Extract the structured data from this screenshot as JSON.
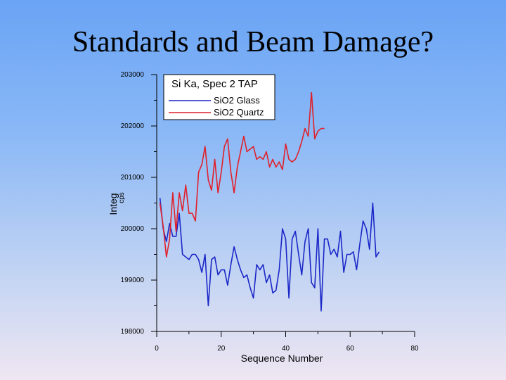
{
  "slide": {
    "title": "Standards and Beam Damage?"
  },
  "colors": {
    "glass": "#1b27c8",
    "quartz": "#e0202a"
  },
  "chart_data": {
    "type": "line",
    "title": "",
    "xlabel": "Sequence Number",
    "ylabel": "Integ",
    "ylabel_unit": "cps",
    "xlim": [
      0,
      80
    ],
    "ylim": [
      198000,
      203000
    ],
    "xticks": [
      0,
      20,
      40,
      60,
      80
    ],
    "yticks": [
      198000,
      199000,
      200000,
      201000,
      202000,
      203000
    ],
    "xtick_labels": [
      "0",
      "20",
      "40",
      "60",
      "80"
    ],
    "ytick_labels": [
      "198000",
      "199000",
      "200000",
      "201000",
      "202000",
      "203000"
    ],
    "legend": {
      "title": "Si Ka, Spec 2 TAP",
      "position": "top-left"
    },
    "series": [
      {
        "name": "SiO2 Glass",
        "color": "#1b27c8",
        "x": [
          1,
          2,
          3,
          4,
          5,
          6,
          7,
          8,
          9,
          10,
          11,
          12,
          13,
          14,
          15,
          16,
          17,
          18,
          19,
          20,
          21,
          22,
          23,
          24,
          25,
          26,
          27,
          28,
          29,
          30,
          31,
          32,
          33,
          34,
          35,
          36,
          37,
          38,
          39,
          40,
          41,
          42,
          43,
          44,
          45,
          46,
          47,
          48,
          49,
          50,
          51,
          52,
          53,
          54,
          55,
          56,
          57,
          58,
          59,
          60,
          61,
          62,
          63,
          64,
          65,
          66,
          67,
          68,
          69
        ],
        "values": [
          200600,
          200000,
          199750,
          200100,
          199850,
          199850,
          200300,
          199500,
          199450,
          199400,
          199500,
          199500,
          199400,
          199150,
          199500,
          198500,
          199400,
          199450,
          199100,
          199200,
          199200,
          198900,
          199300,
          199650,
          199400,
          199200,
          199050,
          199100,
          198850,
          198650,
          199300,
          199200,
          199300,
          198950,
          199100,
          198750,
          198800,
          199200,
          200000,
          199800,
          198650,
          199800,
          199950,
          199500,
          199100,
          199750,
          200000,
          198950,
          198850,
          200000,
          198400,
          199800,
          199800,
          199500,
          199600,
          199450,
          199950,
          199150,
          199500,
          199500,
          199550,
          199200,
          199700,
          200150,
          200000,
          199600,
          200500,
          199450,
          199550
        ]
      },
      {
        "name": "SiO2 Quartz",
        "color": "#e0202a",
        "x": [
          1,
          2,
          3,
          4,
          5,
          6,
          7,
          8,
          9,
          10,
          11,
          12,
          13,
          14,
          15,
          16,
          17,
          18,
          19,
          20,
          21,
          22,
          23,
          24,
          25,
          26,
          27,
          28,
          29,
          30,
          31,
          32,
          33,
          34,
          35,
          36,
          37,
          38,
          39,
          40,
          41,
          42,
          43,
          44,
          45,
          46,
          47,
          48,
          49,
          50,
          51,
          52
        ],
        "values": [
          200500,
          200050,
          199450,
          199800,
          200700,
          199950,
          200700,
          200350,
          200850,
          200300,
          200300,
          200150,
          201100,
          201250,
          201600,
          200950,
          200750,
          201350,
          200700,
          201100,
          201600,
          201750,
          201100,
          200700,
          201200,
          201500,
          201800,
          201500,
          201550,
          201600,
          201350,
          201400,
          201350,
          201500,
          201200,
          201350,
          201200,
          201300,
          201150,
          201650,
          201350,
          201300,
          201350,
          201500,
          201700,
          201950,
          201800,
          202650,
          201750,
          201900,
          201950,
          201950
        ]
      }
    ]
  }
}
